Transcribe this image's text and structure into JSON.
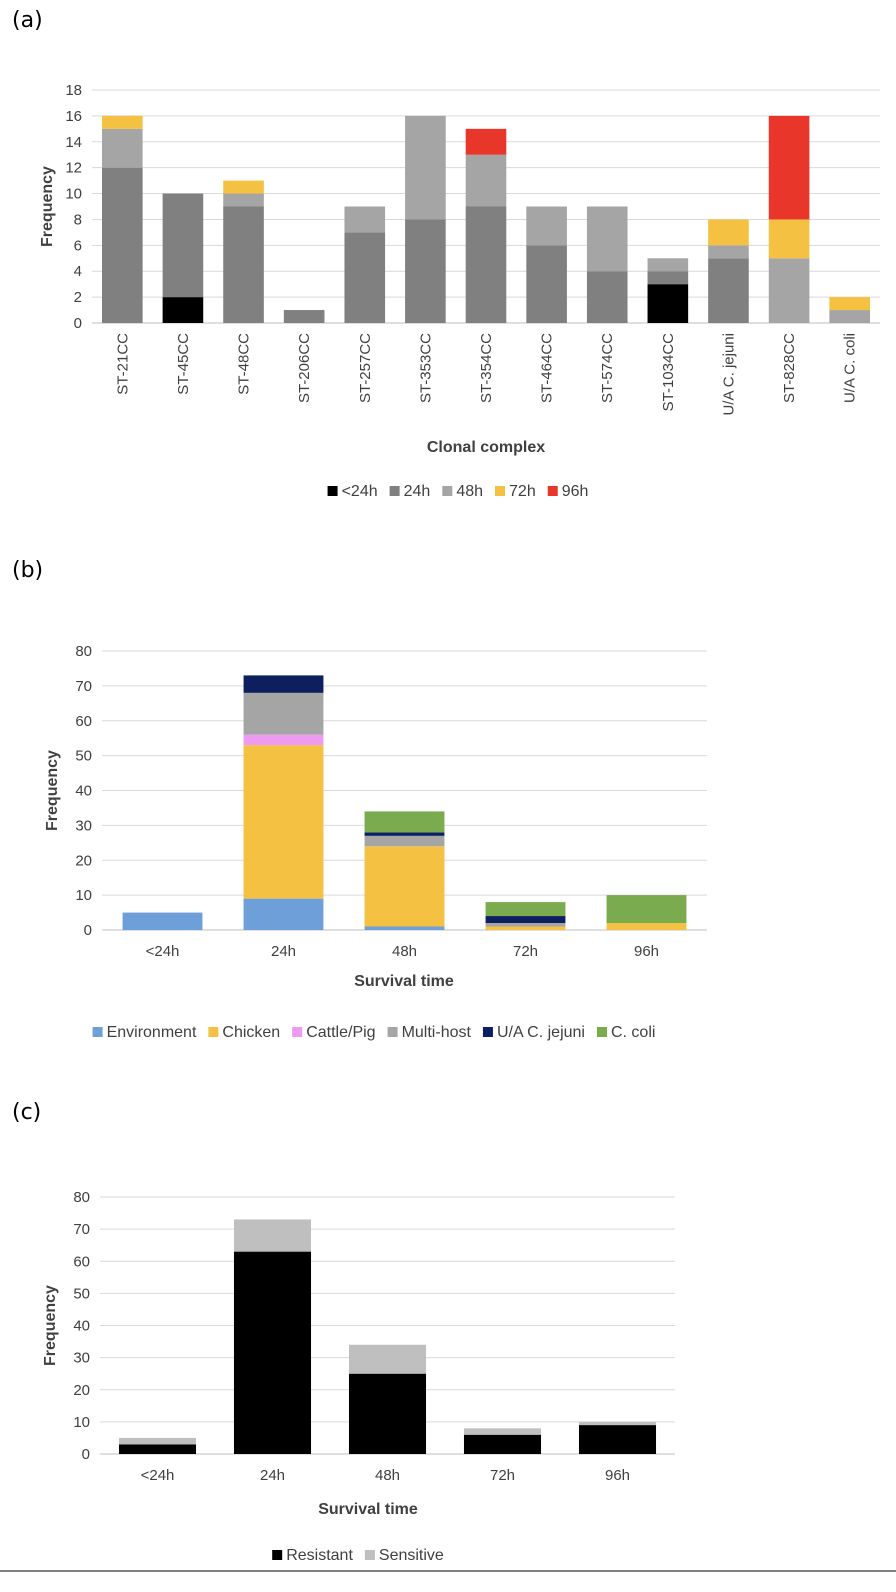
{
  "chart_data": [
    {
      "panel": "(a)",
      "type": "bar",
      "stacked": true,
      "title": "",
      "xlabel": "Clonal complex",
      "ylabel": "Frequency",
      "ylim": [
        0,
        18
      ],
      "yticks": [
        0,
        2,
        4,
        6,
        8,
        10,
        12,
        14,
        16,
        18
      ],
      "grid": true,
      "legend": "bottom",
      "categories": [
        "ST-21CC",
        "ST-45CC",
        "ST-48CC",
        "ST-206CC",
        "ST-257CC",
        "ST-353CC",
        "ST-354CC",
        "ST-464CC",
        "ST-574CC",
        "ST-1034CC",
        "U/A C. jejuni",
        "ST-828CC",
        "U/A C. coli"
      ],
      "series": [
        {
          "name": "<24h",
          "color": "#000000",
          "values": [
            0,
            2,
            0,
            0,
            0,
            0,
            0,
            0,
            0,
            3,
            0,
            0,
            0
          ]
        },
        {
          "name": "24h",
          "color": "#808080",
          "values": [
            12,
            8,
            9,
            1,
            7,
            8,
            9,
            6,
            4,
            1,
            5,
            0,
            0
          ]
        },
        {
          "name": "48h",
          "color": "#a5a5a5",
          "values": [
            3,
            0,
            1,
            0,
            2,
            8,
            4,
            3,
            5,
            1,
            1,
            5,
            1
          ]
        },
        {
          "name": "72h",
          "color": "#f4c142",
          "values": [
            1,
            0,
            1,
            0,
            0,
            0,
            0,
            0,
            0,
            0,
            2,
            3,
            1
          ]
        },
        {
          "name": "96h",
          "color": "#e8362a",
          "values": [
            0,
            0,
            0,
            0,
            0,
            0,
            2,
            0,
            0,
            0,
            0,
            8,
            0
          ]
        }
      ]
    },
    {
      "panel": "(b)",
      "type": "bar",
      "stacked": true,
      "title": "",
      "xlabel": "Survival time",
      "ylabel": "Frequency",
      "ylim": [
        0,
        80
      ],
      "yticks": [
        0,
        10,
        20,
        30,
        40,
        50,
        60,
        70,
        80
      ],
      "grid": true,
      "legend": "bottom",
      "categories": [
        "<24h",
        "24h",
        "48h",
        "72h",
        "96h"
      ],
      "series": [
        {
          "name": "Environment",
          "color": "#6f9fd8",
          "values": [
            5,
            9,
            1,
            0,
            0
          ]
        },
        {
          "name": "Chicken",
          "color": "#f4c142",
          "values": [
            0,
            44,
            23,
            1,
            2
          ]
        },
        {
          "name": "Cattle/Pig",
          "color": "#ee9af0",
          "values": [
            0,
            3,
            0,
            0,
            0
          ]
        },
        {
          "name": "Multi-host",
          "color": "#a5a5a5",
          "values": [
            0,
            12,
            3,
            1,
            0
          ]
        },
        {
          "name": "U/A C. jejuni",
          "color": "#0d1f5e",
          "values": [
            0,
            5,
            1,
            2,
            0
          ]
        },
        {
          "name": "C. coli",
          "color": "#7aab4e",
          "values": [
            0,
            0,
            6,
            4,
            8
          ]
        }
      ]
    },
    {
      "panel": "(c)",
      "type": "bar",
      "stacked": true,
      "title": "",
      "xlabel": "Survival time",
      "ylabel": "Frequency",
      "ylim": [
        0,
        80
      ],
      "yticks": [
        0,
        10,
        20,
        30,
        40,
        50,
        60,
        70,
        80
      ],
      "grid": true,
      "legend": "bottom",
      "categories": [
        "<24h",
        "24h",
        "48h",
        "72h",
        "96h"
      ],
      "series": [
        {
          "name": "Resistant",
          "color": "#000000",
          "values": [
            3,
            63,
            25,
            6,
            9
          ]
        },
        {
          "name": "Sensitive",
          "color": "#bfbfbf",
          "values": [
            2,
            10,
            9,
            2,
            1
          ]
        }
      ]
    }
  ]
}
